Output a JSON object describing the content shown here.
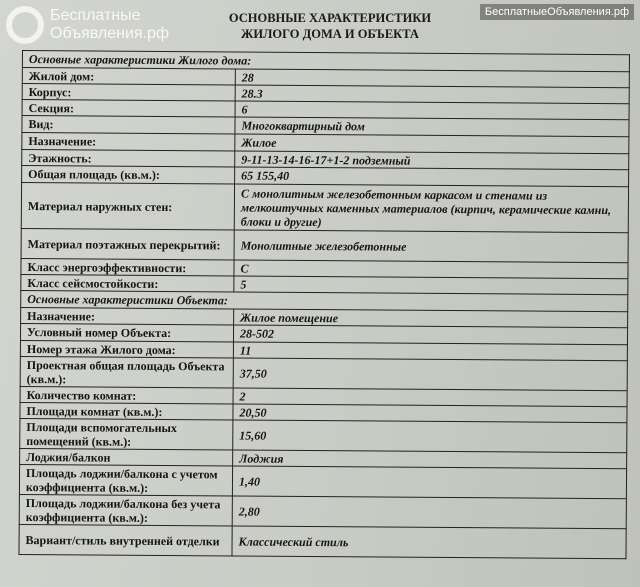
{
  "title": [
    "ОСНОВНЫЕ ХАРАКТЕРИСТИКИ",
    "ЖИЛОГО ДОМА И ОБЪЕКТА"
  ],
  "section_house": "Основные характеристики Жилого дома:",
  "house": [
    {
      "label": "Жилой дом:",
      "value": "28"
    },
    {
      "label": "Корпус:",
      "value": "28.3"
    },
    {
      "label": "Секция:",
      "value": "6"
    },
    {
      "label": "Вид:",
      "value": "Многоквартирный дом"
    },
    {
      "label": "Назначение:",
      "value": "Жилое"
    },
    {
      "label": "Этажность:",
      "value": "9-11-13-14-16-17+1-2 подземный"
    },
    {
      "label": "Общая площадь (кв.м.):",
      "value": "65 155,40"
    },
    {
      "label": "Материал наружных стен:",
      "value": "С монолитным железобетонным каркасом и стенами из мелкоштучных каменных материалов (кирпич, керамические камни, блоки и другие)"
    },
    {
      "label": "Материал поэтажных перекрытий:",
      "value": "Монолитные железобетонные"
    },
    {
      "label": "Класс энергоэффективности:",
      "value": "С"
    },
    {
      "label": "Класс сейсмостойкости:",
      "value": "5"
    }
  ],
  "section_object": "Основные характеристики Объекта:",
  "object": [
    {
      "label": "Назначение:",
      "value": "Жилое помещение"
    },
    {
      "label": "Условный номер Объекта:",
      "value": "28-502"
    },
    {
      "label": "Номер этажа Жилого дома:",
      "value": "11"
    },
    {
      "label": "Проектная общая площадь Объекта (кв.м.):",
      "value": "37,50"
    },
    {
      "label": "Количество комнат:",
      "value": "2"
    },
    {
      "label": "Площади комнат (кв.м.):",
      "value": "20,50"
    },
    {
      "label": "Площади вспомогательных помещений (кв.м.):",
      "value": "15,60"
    },
    {
      "label": "Лоджия/балкон",
      "value": "Лоджия"
    },
    {
      "label": "Площадь лоджии/балкона с учетом коэффициента (кв.м.):",
      "value": "1,40"
    },
    {
      "label": "Площадь лоджии/балкона без учета коэффициента (кв.м.):",
      "value": "2,80"
    },
    {
      "label": "Вариант/стиль внутренней отделки",
      "value": "Классический стиль"
    }
  ],
  "watermark": "БесплатныеОбъявления.рф",
  "watermark_top": "Бесплатные Объявления.рф"
}
